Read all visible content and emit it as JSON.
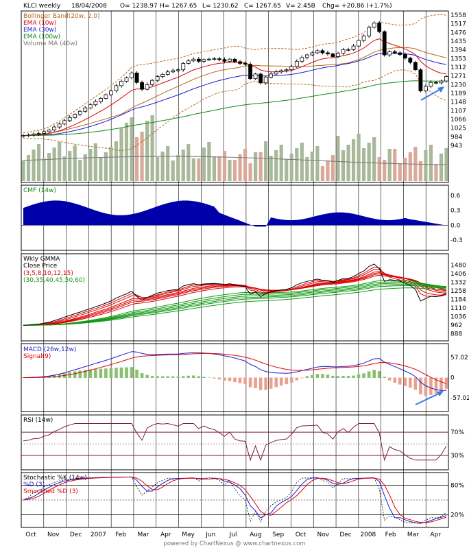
{
  "header": {
    "symbol": "KLCI weekly",
    "date": "18/04/2008",
    "open": "O= 1238.97",
    "high": "H= 1267.65",
    "low": "L= 1230.62",
    "close": "C= 1267.65",
    "volume": "V= 2.45B",
    "change": "Chg= +20.86 (+1.7%)"
  },
  "footer": "powered by ChartNexus @ www.chartnexus.com",
  "colors": {
    "bollinger": "#b8651b",
    "ema10": "#e00000",
    "ema30": "#1a1ad0",
    "ema100": "#118811",
    "volma": "#777777",
    "cmf": "#0000aa",
    "gmma_short": "#dd0000",
    "gmma_long": "#119911",
    "macd": "#1a1ad0",
    "signal": "#e00000",
    "hist_up": "#88c070",
    "hist_down": "#e8a090",
    "rsi": "#7a1a4a",
    "stoch_k": "#1a1ad0",
    "stoch_d": "#e00000",
    "arrow": "#3a7ae8"
  },
  "chart_data": [
    {
      "panel": "price",
      "type": "candlestick",
      "legend": [
        "Bollinger Band(20w, 2.0)",
        "EMA (10w)",
        "EMA (30w)",
        "EMA (100w)",
        "Volume MA (40w)"
      ],
      "ylim": [
        943,
        1558
      ],
      "yticks": [
        "1558",
        "1517",
        "1476",
        "1435",
        "1394",
        "1353",
        "1312",
        "1271",
        "1230",
        "1189",
        "1148",
        "1107",
        "1066",
        "1025",
        "984",
        "943"
      ],
      "x_labels": [
        "Oct",
        "Nov",
        "Dec",
        "2007",
        "Feb",
        "Mar",
        "Apr",
        "May",
        "Jun",
        "Jul",
        "Aug",
        "Sep",
        "Oct",
        "Nov",
        "Dec",
        "2008",
        "Feb",
        "Mar",
        "Apr"
      ],
      "close": [
        990,
        992,
        997,
        1000,
        1008,
        1016,
        1030,
        1044,
        1060,
        1075,
        1090,
        1104,
        1120,
        1135,
        1150,
        1165,
        1182,
        1200,
        1225,
        1245,
        1262,
        1285,
        1240,
        1208,
        1230,
        1250,
        1268,
        1278,
        1290,
        1296,
        1300,
        1330,
        1342,
        1350,
        1340,
        1348,
        1350,
        1352,
        1348,
        1340,
        1350,
        1338,
        1330,
        1326,
        1258,
        1280,
        1238,
        1265,
        1280,
        1290,
        1296,
        1300,
        1315,
        1340,
        1358,
        1370,
        1380,
        1390,
        1380,
        1375,
        1362,
        1378,
        1395,
        1395,
        1412,
        1438,
        1460,
        1500,
        1520,
        1480,
        1370,
        1385,
        1380,
        1372,
        1355,
        1335,
        1300,
        1200,
        1222,
        1240,
        1238,
        1247,
        1268
      ],
      "volume_max": 1.0
    },
    {
      "panel": "cmf",
      "type": "area",
      "title": "CMF (14w)",
      "yticks": [
        "0.6",
        "0.3",
        "0.0",
        "-0.3"
      ],
      "ylim": [
        -0.4,
        0.7
      ]
    },
    {
      "panel": "gmma",
      "type": "line",
      "title": "Wkly GMMA",
      "series_labels": [
        "Close Price",
        "(3,5,8,10,12,15)",
        "(30,35,40,45,50,60)"
      ],
      "yticks": [
        "1480",
        "1406",
        "1332",
        "1258",
        "1184",
        "1110",
        "1036",
        "962",
        "888"
      ],
      "ylim": [
        860,
        1520
      ]
    },
    {
      "panel": "macd",
      "type": "line",
      "title": "MACD (26w,12w)",
      "signal_label": "Signal(9)",
      "yticks": [
        "57.02",
        "0",
        "-57.02"
      ],
      "ylim": [
        -80,
        80
      ]
    },
    {
      "panel": "rsi",
      "type": "line",
      "title": "RSI (14w)",
      "yticks": [
        "70%",
        "30%"
      ],
      "ylim": [
        10,
        95
      ]
    },
    {
      "panel": "stoch",
      "type": "line",
      "title": "Stochastic %K (14w)",
      "d_label": "%D (3)",
      "smoothed_label": "Smoothed %D (3)",
      "yticks": [
        "80%",
        "20%"
      ],
      "ylim": [
        0,
        100
      ]
    }
  ]
}
